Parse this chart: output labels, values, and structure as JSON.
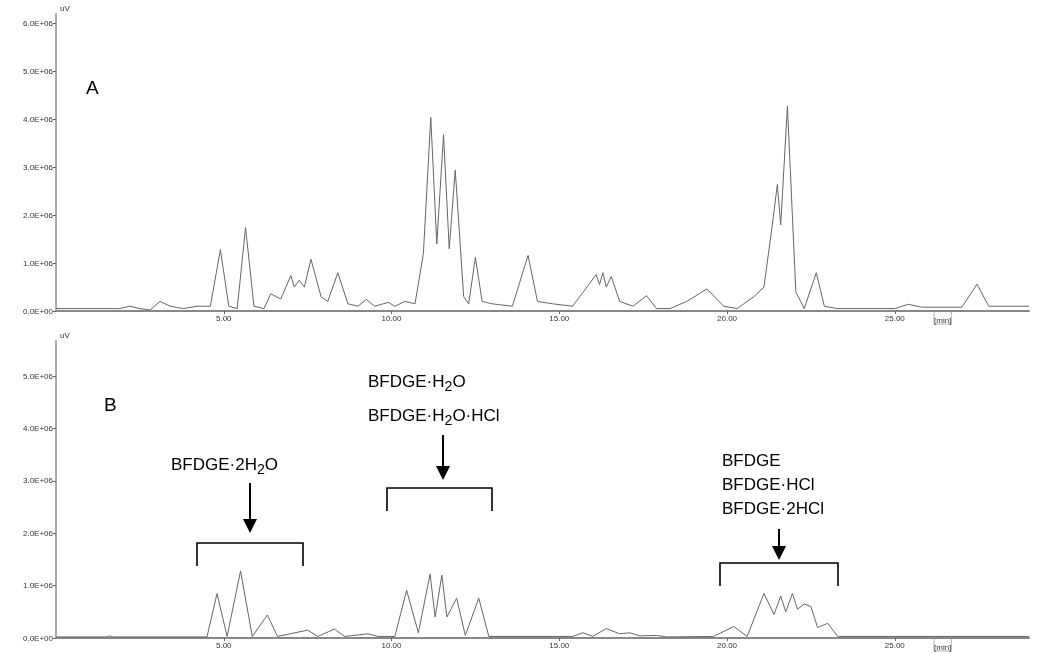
{
  "chart_data": [
    {
      "type": "line",
      "xlabel": "[min]",
      "ylabel": "uV",
      "annotations": [
        "A"
      ],
      "xlim": [
        0,
        29
      ],
      "ylim": [
        0,
        6200000.0
      ],
      "xticks": [
        {
          "value": 5,
          "label": "5.00"
        },
        {
          "value": 10,
          "label": "10.00"
        },
        {
          "value": 15,
          "label": "15.00"
        },
        {
          "value": 20,
          "label": "20.00"
        },
        {
          "value": 25,
          "label": "25.00"
        }
      ],
      "yticks": [
        {
          "value": 0,
          "label": "0.0E+00"
        },
        {
          "value": 1000000.0,
          "label": "1.0E+06"
        },
        {
          "value": 2000000.0,
          "label": "2.0E+06"
        },
        {
          "value": 3000000.0,
          "label": "3.0E+06"
        },
        {
          "value": 4000000.0,
          "label": "4.0E+06"
        },
        {
          "value": 5000000.0,
          "label": "5.0E+06"
        },
        {
          "value": 6000000.0,
          "label": "6.0E+06"
        }
      ],
      "series": [
        {
          "color": "#666666",
          "x": [
            0,
            1.9,
            2.2,
            2.5,
            2.8,
            3.1,
            3.4,
            3.8,
            4.2,
            4.6,
            4.9,
            5.15,
            5.4,
            5.65,
            5.9,
            6.2,
            6.4,
            6.7,
            7.0,
            7.1,
            7.25,
            7.4,
            7.6,
            7.9,
            8.1,
            8.4,
            8.7,
            9.0,
            9.25,
            9.5,
            9.9,
            10.1,
            10.4,
            10.7,
            10.95,
            11.17,
            11.35,
            11.55,
            11.72,
            11.9,
            12.15,
            12.3,
            12.5,
            12.7,
            13.0,
            13.6,
            14.07,
            14.35,
            14.8,
            15.4,
            16.1,
            16.2,
            16.3,
            16.4,
            16.55,
            16.8,
            17.2,
            17.6,
            17.9,
            18.3,
            18.8,
            19.4,
            19.9,
            20.3,
            20.8,
            21.1,
            21.35,
            21.5,
            21.6,
            21.8,
            22.05,
            22.3,
            22.66,
            22.9,
            23.3,
            25.0,
            25.4,
            25.8,
            27.0,
            27.45,
            27.8,
            29
          ],
          "values": [
            50000.0,
            50000.0,
            100000.0,
            50000.0,
            20000.0,
            200000.0,
            100000.0,
            50000.0,
            100000.0,
            100000.0,
            1280000.0,
            100000.0,
            50000.0,
            1740000.0,
            100000.0,
            50000.0,
            360000.0,
            250000.0,
            740000.0,
            500000.0,
            640000.0,
            500000.0,
            1080000.0,
            300000.0,
            200000.0,
            800000.0,
            150000.0,
            100000.0,
            240000.0,
            100000.0,
            180000.0,
            100000.0,
            200000.0,
            150000.0,
            1200000.0,
            4040000.0,
            1400000.0,
            3680000.0,
            1300000.0,
            2940000.0,
            300000.0,
            150000.0,
            1120000.0,
            200000.0,
            150000.0,
            100000.0,
            1160000.0,
            200000.0,
            150000.0,
            100000.0,
            760000.0,
            550000.0,
            800000.0,
            500000.0,
            720000.0,
            200000.0,
            100000.0,
            320000.0,
            50000.0,
            50000.0,
            200000.0,
            460000.0,
            100000.0,
            50000.0,
            300000.0,
            500000.0,
            1800000.0,
            2640000.0,
            1800000.0,
            4280000.0,
            400000.0,
            50000.0,
            800000.0,
            100000.0,
            50000.0,
            50000.0,
            140000.0,
            80000.0,
            80000.0,
            560000.0,
            100000.0,
            100000.0
          ]
        }
      ]
    },
    {
      "type": "line",
      "xlabel": "[min]",
      "ylabel": "uV",
      "annotations": [
        "B",
        "BFDGE·2H$_{2}$O",
        "BFDGE·H$_{2}$O\nBFDGE·H$_{2}$O·HCl",
        "BFDGE\nBFDGE·HCl\nBFDGE·2HCl"
      ],
      "xlim": [
        0,
        29
      ],
      "ylim": [
        0,
        5670000.0
      ],
      "xticks": [
        {
          "value": 5,
          "label": "5.00"
        },
        {
          "value": 10,
          "label": "10.00"
        },
        {
          "value": 15,
          "label": "15.00"
        },
        {
          "value": 20,
          "label": "20.00"
        },
        {
          "value": 25,
          "label": "25.00"
        }
      ],
      "yticks": [
        {
          "value": 0,
          "label": "0.0E+00"
        },
        {
          "value": 1000000.0,
          "label": "1.0E+06"
        },
        {
          "value": 2000000.0,
          "label": "2.0E+06"
        },
        {
          "value": 3000000.0,
          "label": "3.0E+06"
        },
        {
          "value": 4000000.0,
          "label": "4.0E+06"
        },
        {
          "value": 5000000.0,
          "label": "5.0E+06"
        }
      ],
      "series": [
        {
          "color": "#666666",
          "x": [
            0,
            1.5,
            1.6,
            1.7,
            4.5,
            4.8,
            5.1,
            5.5,
            5.85,
            6.3,
            6.6,
            7.5,
            7.8,
            8.3,
            8.6,
            9.3,
            9.6,
            10.1,
            10.45,
            10.8,
            11.15,
            11.3,
            11.5,
            11.65,
            11.94,
            12.2,
            12.6,
            12.9,
            15.4,
            15.7,
            16.0,
            16.4,
            16.8,
            17.1,
            17.4,
            17.9,
            18.2,
            19.6,
            20.2,
            20.6,
            21.1,
            21.4,
            21.6,
            21.75,
            21.95,
            22.1,
            22.3,
            22.5,
            22.7,
            23.0,
            23.3,
            29
          ],
          "values": [
            20000.0,
            20000.0,
            40000.0,
            20000.0,
            20000.0,
            850000.0,
            30000.0,
            1280000.0,
            30000.0,
            440000.0,
            30000.0,
            150000.0,
            30000.0,
            170000.0,
            30000.0,
            80000.0,
            30000.0,
            30000.0,
            910000.0,
            100000.0,
            1220000.0,
            400000.0,
            1200000.0,
            400000.0,
            760000.0,
            50000.0,
            760000.0,
            30000.0,
            30000.0,
            100000.0,
            30000.0,
            180000.0,
            80000.0,
            100000.0,
            40000.0,
            50000.0,
            20000.0,
            30000.0,
            220000.0,
            30000.0,
            850000.0,
            450000.0,
            800000.0,
            500000.0,
            850000.0,
            550000.0,
            650000.0,
            600000.0,
            200000.0,
            280000.0,
            30000.0,
            30000.0
          ]
        }
      ]
    }
  ]
}
